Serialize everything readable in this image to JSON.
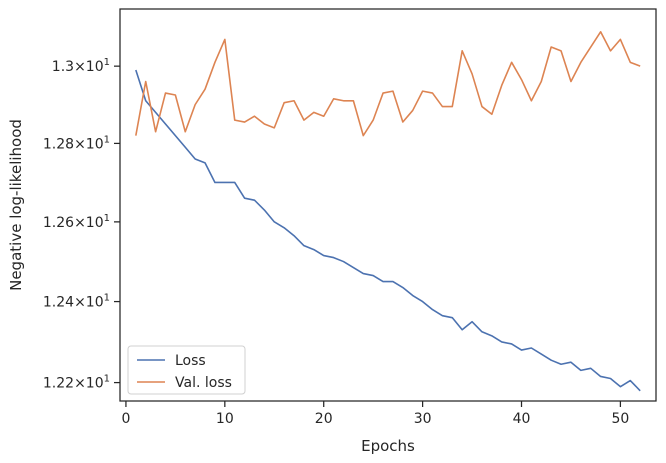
{
  "chart_data": {
    "type": "line",
    "xlabel": "Epochs",
    "ylabel": "Negative log-likelihood",
    "xlim": [
      -0.6,
      53.6
    ],
    "ylim": [
      12.155,
      13.15
    ],
    "yscale": "log",
    "xticks": [
      0,
      10,
      20,
      30,
      40,
      50
    ],
    "xtick_labels": [
      "0",
      "10",
      "20",
      "30",
      "40",
      "50"
    ],
    "yticks": [
      12.2,
      12.4,
      12.6,
      12.8,
      13.0
    ],
    "ytick_labels": [
      {
        "base": "1.22",
        "sep": "×",
        "exp_base": "10",
        "exp": "1"
      },
      {
        "base": "1.24",
        "sep": "×",
        "exp_base": "10",
        "exp": "1"
      },
      {
        "base": "1.26",
        "sep": "×",
        "exp_base": "10",
        "exp": "1"
      },
      {
        "base": "1.28",
        "sep": "×",
        "exp_base": "10",
        "exp": "1"
      },
      {
        "base": "1.3",
        "sep": "×",
        "exp_base": "10",
        "exp": "1"
      }
    ],
    "grid": false,
    "legend": "lower-left",
    "x": [
      1,
      2,
      3,
      4,
      5,
      6,
      7,
      8,
      9,
      10,
      11,
      12,
      13,
      14,
      15,
      16,
      17,
      18,
      19,
      20,
      21,
      22,
      23,
      24,
      25,
      26,
      27,
      28,
      29,
      30,
      31,
      32,
      33,
      34,
      35,
      36,
      37,
      38,
      39,
      40,
      41,
      42,
      43,
      44,
      45,
      46,
      47,
      48,
      49,
      50,
      51,
      52
    ],
    "series": [
      {
        "name": "Loss",
        "color": "#4c72b0",
        "values": [
          12.99,
          12.91,
          12.88,
          12.85,
          12.82,
          12.79,
          12.76,
          12.75,
          12.7,
          12.7,
          12.7,
          12.66,
          12.655,
          12.63,
          12.6,
          12.585,
          12.565,
          12.54,
          12.53,
          12.515,
          12.51,
          12.5,
          12.485,
          12.47,
          12.465,
          12.45,
          12.45,
          12.435,
          12.415,
          12.4,
          12.38,
          12.365,
          12.36,
          12.33,
          12.35,
          12.325,
          12.315,
          12.3,
          12.295,
          12.28,
          12.285,
          12.27,
          12.255,
          12.245,
          12.25,
          12.23,
          12.235,
          12.215,
          12.21,
          12.19,
          12.205,
          12.18
        ]
      },
      {
        "name": "Val. loss",
        "color": "#dd8452",
        "values": [
          12.82,
          12.96,
          12.83,
          12.93,
          12.925,
          12.83,
          12.9,
          12.94,
          13.01,
          13.07,
          12.86,
          12.855,
          12.87,
          12.85,
          12.84,
          12.905,
          12.91,
          12.86,
          12.88,
          12.87,
          12.915,
          12.91,
          12.91,
          12.82,
          12.86,
          12.93,
          12.935,
          12.855,
          12.885,
          12.935,
          12.93,
          12.895,
          12.895,
          13.04,
          12.98,
          12.895,
          12.875,
          12.95,
          13.01,
          12.965,
          12.91,
          12.96,
          13.05,
          13.04,
          12.96,
          13.01,
          13.05,
          13.09,
          13.04,
          13.07,
          13.01,
          13.0
        ]
      }
    ]
  }
}
